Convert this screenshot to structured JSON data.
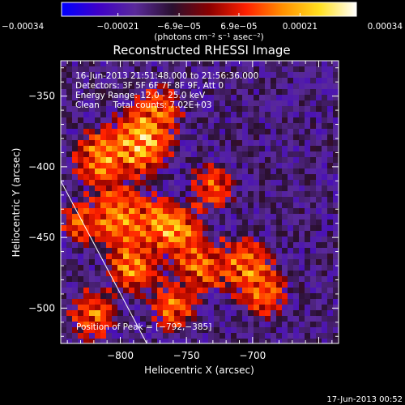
{
  "chart_data": {
    "type": "heatmap",
    "title": "Reconstructed RHESSI Image",
    "xlabel": "Heliocentric X (arcsec)",
    "ylabel": "Heliocentric Y (arcsec)",
    "x_range": [
      -845,
      -635
    ],
    "y_range": [
      -525,
      -325
    ],
    "x_ticks": [
      "−800",
      "−750",
      "−700"
    ],
    "x_tick_values": [
      -800,
      -750,
      -700
    ],
    "y_ticks": [
      "−350",
      "−400",
      "−450",
      "−500"
    ],
    "y_tick_values": [
      -350,
      -400,
      -450,
      -500
    ],
    "colorbar": {
      "range": [
        -0.00034,
        0.00034
      ],
      "tick_labels": [
        "−0.00034",
        "−0.00021",
        "−6.9e−05",
        "6.9e−05",
        "0.00021",
        "0.00034"
      ],
      "tick_values": [
        -0.00034,
        -0.00021,
        -6.9e-05,
        6.9e-05,
        0.00021,
        0.00034
      ],
      "unit_label": "(photons cm⁻² s⁻¹ asec⁻²)"
    },
    "annotations": [
      "16-Jun-2013 21:51:48.000 to 21:56:36.000",
      "Detectors: 3F 5F 6F 7F 8F 9F, Att 0",
      "Energy Range: 12.0 - 25.0 keV",
      "Clean     Total counts: 7.02E+03"
    ],
    "peak_label": "Position of Peak = [−792,−385]",
    "peak_position": [
      -792,
      -385
    ],
    "limb_line": [
      [
        -845,
        -410
      ],
      [
        -780,
        -525
      ]
    ],
    "timestamp": "17-Jun-2013 00:52"
  },
  "colors": {
    "background": "#000000",
    "text": "#ffffff",
    "colormap": [
      "#0000ff",
      "#3f00c8",
      "#5a2a9a",
      "#2a1030",
      "#8a0000",
      "#ff2000",
      "#ff9000",
      "#ffe020",
      "#ffffff"
    ]
  }
}
